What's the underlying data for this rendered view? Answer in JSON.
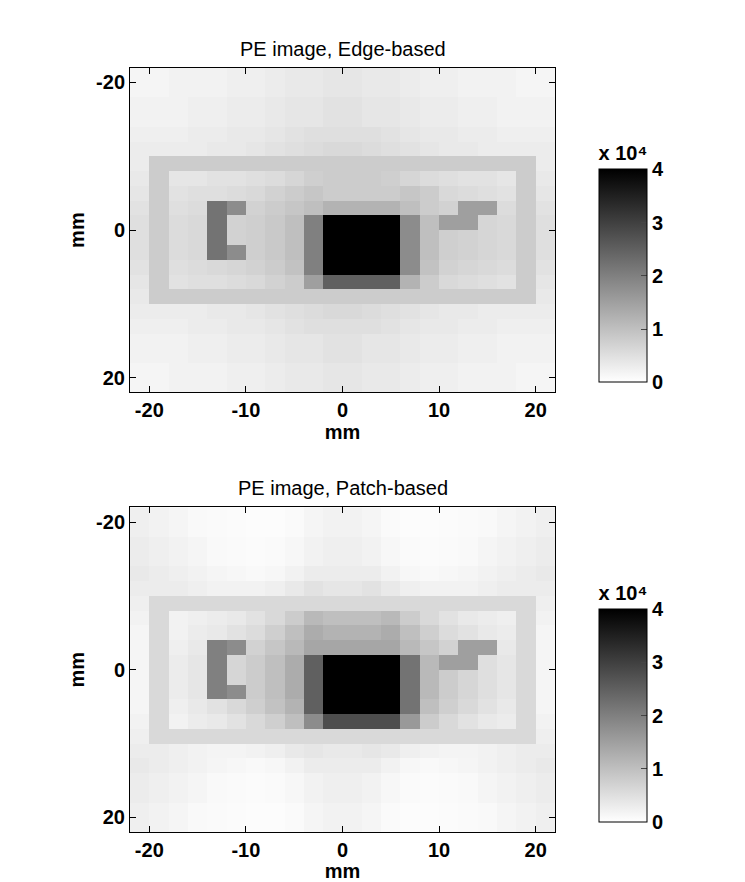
{
  "chart_data": [
    {
      "type": "heatmap",
      "title": "PE image, Edge-based",
      "x_label": "mm",
      "y_label": "mm",
      "x": [
        -21,
        -19,
        -17,
        -15,
        -13,
        -11,
        -9,
        -7,
        -5,
        -3,
        -1,
        1,
        3,
        5,
        7,
        9,
        11,
        13,
        15,
        17,
        19,
        21
      ],
      "y": [
        -21,
        -19,
        -17,
        -15,
        -13,
        -11,
        -9,
        -7,
        -5,
        -3,
        -1,
        1,
        3,
        5,
        7,
        9,
        11,
        13,
        15,
        17,
        19,
        21
      ],
      "z": [
        [
          1500,
          1500,
          2000,
          2000,
          2000,
          2500,
          2500,
          3000,
          3500,
          3500,
          4000,
          4000,
          3500,
          3500,
          3000,
          2500,
          2500,
          2000,
          2000,
          2000,
          1500,
          1500
        ],
        [
          1500,
          1500,
          2000,
          2000,
          2000,
          2500,
          2500,
          3000,
          3500,
          3500,
          4000,
          4000,
          3500,
          3500,
          3000,
          2500,
          2500,
          2000,
          2000,
          2000,
          1500,
          1500
        ],
        [
          2000,
          2000,
          2000,
          2500,
          2500,
          3000,
          3000,
          3500,
          4000,
          4000,
          4500,
          4500,
          4000,
          4000,
          3500,
          3000,
          3000,
          2500,
          2500,
          2000,
          2000,
          2000
        ],
        [
          2000,
          2000,
          2000,
          2500,
          2500,
          3000,
          3000,
          3500,
          4000,
          4000,
          4500,
          4500,
          4000,
          4000,
          3500,
          3000,
          3000,
          2500,
          2500,
          2000,
          2000,
          2000
        ],
        [
          2500,
          2500,
          2500,
          3000,
          3000,
          3500,
          3500,
          4000,
          4500,
          5000,
          5000,
          5000,
          5000,
          4500,
          4000,
          3500,
          3500,
          3000,
          3000,
          2500,
          2500,
          2500
        ],
        [
          3000,
          3000,
          3000,
          3000,
          3500,
          3500,
          4000,
          4500,
          5000,
          5500,
          6000,
          6000,
          5500,
          5000,
          4500,
          4000,
          3500,
          3500,
          3000,
          3000,
          3000,
          3000
        ],
        [
          3000,
          8000,
          8000,
          8000,
          8000,
          8000,
          8000,
          8000,
          8000,
          8000,
          8000,
          8000,
          8000,
          8000,
          8000,
          8000,
          8000,
          8000,
          8000,
          8000,
          8000,
          3000
        ],
        [
          3500,
          8000,
          4000,
          4000,
          4500,
          4500,
          5000,
          5500,
          6500,
          7500,
          8000,
          8000,
          8000,
          7500,
          6500,
          5500,
          5000,
          4500,
          4500,
          4000,
          8000,
          3500
        ],
        [
          4000,
          8000,
          4500,
          5000,
          5000,
          5500,
          6000,
          7000,
          8000,
          9000,
          8000,
          8000,
          8000,
          8000,
          9000,
          8000,
          6000,
          5500,
          5000,
          4500,
          8000,
          4000
        ],
        [
          4500,
          8000,
          5000,
          5500,
          22000,
          18000,
          7000,
          8000,
          9000,
          10000,
          12000,
          12000,
          12000,
          12000,
          10000,
          8000,
          7000,
          15000,
          15000,
          5500,
          8000,
          4500
        ],
        [
          5000,
          8000,
          5500,
          6000,
          22000,
          7000,
          7500,
          8500,
          10000,
          20000,
          40000,
          40000,
          40000,
          40000,
          18000,
          10000,
          15000,
          15000,
          6500,
          6000,
          8000,
          5000
        ],
        [
          5000,
          8000,
          5500,
          6000,
          22000,
          7000,
          7500,
          8500,
          10000,
          20000,
          40000,
          40000,
          40000,
          40000,
          18000,
          10000,
          7500,
          7000,
          6500,
          6000,
          8000,
          5000
        ],
        [
          5000,
          8000,
          5500,
          6000,
          22000,
          18000,
          7500,
          8500,
          10000,
          20000,
          40000,
          40000,
          40000,
          40000,
          18000,
          10000,
          7500,
          7000,
          6500,
          6000,
          8000,
          5000
        ],
        [
          4500,
          8000,
          5000,
          5500,
          6000,
          6500,
          7000,
          8000,
          9500,
          20000,
          40000,
          40000,
          40000,
          40000,
          18000,
          9500,
          7000,
          6500,
          6000,
          5500,
          8000,
          4500
        ],
        [
          4000,
          8000,
          4500,
          5000,
          5000,
          5500,
          6000,
          7000,
          8000,
          15000,
          25000,
          25000,
          25000,
          25000,
          12000,
          8000,
          6000,
          5500,
          5000,
          4500,
          8000,
          4000
        ],
        [
          3500,
          8000,
          8000,
          8000,
          8000,
          8000,
          8000,
          8000,
          8000,
          8000,
          8000,
          8000,
          8000,
          8000,
          8000,
          8000,
          8000,
          8000,
          8000,
          8000,
          8000,
          3500
        ],
        [
          3000,
          3000,
          3000,
          3000,
          3500,
          3500,
          4000,
          4500,
          5000,
          5500,
          6000,
          6000,
          5500,
          5000,
          4500,
          4000,
          3500,
          3500,
          3000,
          3000,
          3000,
          3000
        ],
        [
          2500,
          2500,
          2500,
          3000,
          3000,
          3500,
          3500,
          4000,
          4500,
          5000,
          5000,
          5000,
          5000,
          4500,
          4000,
          3500,
          3500,
          3000,
          3000,
          2500,
          2500,
          2500
        ],
        [
          2000,
          2000,
          2000,
          2500,
          2500,
          3000,
          3000,
          3500,
          4000,
          4000,
          4500,
          4500,
          4000,
          4000,
          3500,
          3000,
          3000,
          2500,
          2500,
          2000,
          2000,
          2000
        ],
        [
          2000,
          2000,
          2000,
          2500,
          2500,
          3000,
          3000,
          3500,
          4000,
          4000,
          4500,
          4500,
          4000,
          4000,
          3500,
          3000,
          3000,
          2500,
          2500,
          2000,
          2000,
          2000
        ],
        [
          1500,
          1500,
          2000,
          2000,
          2000,
          2500,
          2500,
          3000,
          3500,
          3500,
          4000,
          4000,
          3500,
          3500,
          3000,
          2500,
          2500,
          2000,
          2000,
          2000,
          1500,
          1500
        ],
        [
          1500,
          1500,
          2000,
          2000,
          2000,
          2500,
          2500,
          3000,
          3500,
          3500,
          4000,
          4000,
          3500,
          3500,
          3000,
          2500,
          2500,
          2000,
          2000,
          2000,
          1500,
          1500
        ]
      ],
      "xlim": [
        -22,
        22
      ],
      "ylim": [
        22,
        -22
      ],
      "xticks": [
        -20,
        -10,
        0,
        10,
        20
      ],
      "yticks": [
        -20,
        0,
        20
      ],
      "colorbar": {
        "range": [
          0,
          40000
        ],
        "title": "x 10⁴",
        "ticks": [
          0,
          {
            "value": 10000,
            "label": "1"
          },
          {
            "value": 20000,
            "label": "2"
          },
          {
            "value": 30000,
            "label": "3"
          },
          {
            "value": 40000,
            "label": "4"
          }
        ]
      }
    },
    {
      "type": "heatmap",
      "title": "PE image, Patch-based",
      "x_label": "mm",
      "y_label": "mm",
      "x": [
        -21,
        -19,
        -17,
        -15,
        -13,
        -11,
        -9,
        -7,
        -5,
        -3,
        -1,
        1,
        3,
        5,
        7,
        9,
        11,
        13,
        15,
        17,
        19,
        21
      ],
      "y": [
        -21,
        -19,
        -17,
        -15,
        -13,
        -11,
        -9,
        -7,
        -5,
        -3,
        -1,
        1,
        3,
        5,
        7,
        9,
        11,
        13,
        15,
        17,
        19,
        21
      ],
      "z": [
        [
          2500,
          2000,
          1500,
          1000,
          800,
          600,
          500,
          500,
          800,
          1500,
          2000,
          2000,
          1500,
          800,
          500,
          500,
          600,
          800,
          1000,
          1500,
          2000,
          2500
        ],
        [
          2500,
          2000,
          1500,
          1000,
          800,
          600,
          500,
          500,
          800,
          1500,
          2000,
          2000,
          1500,
          800,
          500,
          500,
          600,
          800,
          1000,
          1500,
          2000,
          2500
        ],
        [
          3000,
          2500,
          2000,
          1500,
          1000,
          800,
          700,
          800,
          1200,
          2000,
          2500,
          2500,
          2000,
          1200,
          800,
          700,
          800,
          1000,
          1500,
          2000,
          2500,
          3000
        ],
        [
          3000,
          2500,
          2000,
          1500,
          1000,
          800,
          700,
          800,
          1200,
          2000,
          2500,
          2500,
          2000,
          1200,
          800,
          700,
          800,
          1000,
          1500,
          2000,
          2500,
          3000
        ],
        [
          3500,
          3000,
          2500,
          2000,
          1500,
          1200,
          1000,
          1200,
          2000,
          3000,
          3000,
          3000,
          3000,
          2000,
          1200,
          1000,
          1200,
          1500,
          2000,
          2500,
          3000,
          3500
        ],
        [
          3000,
          3000,
          3000,
          2500,
          2000,
          2000,
          2000,
          2500,
          3500,
          4500,
          4000,
          4000,
          4500,
          3500,
          2500,
          2000,
          2000,
          2000,
          2500,
          3000,
          3000,
          3000
        ],
        [
          2500,
          6000,
          6000,
          6000,
          6000,
          6000,
          6000,
          6000,
          6000,
          6000,
          6000,
          6000,
          6000,
          6000,
          6000,
          6000,
          6000,
          6000,
          6000,
          6000,
          6000,
          2500
        ],
        [
          2000,
          6000,
          2000,
          2500,
          3000,
          3500,
          4500,
          6000,
          8000,
          11000,
          10000,
          10000,
          10000,
          11000,
          8000,
          6000,
          4500,
          3500,
          3000,
          2500,
          6000,
          2000
        ],
        [
          1500,
          6000,
          2000,
          3000,
          3500,
          4500,
          5500,
          7500,
          10000,
          13000,
          12000,
          12000,
          12000,
          13000,
          10000,
          7500,
          5500,
          4500,
          3500,
          3000,
          6000,
          1500
        ],
        [
          1500,
          6000,
          2500,
          3500,
          20000,
          18000,
          7000,
          9000,
          11000,
          14000,
          14000,
          14000,
          14000,
          14000,
          11000,
          9000,
          7000,
          15000,
          15000,
          3500,
          6000,
          1500
        ],
        [
          1500,
          6000,
          3000,
          4000,
          20000,
          6500,
          8000,
          10000,
          13000,
          25000,
          40000,
          40000,
          40000,
          40000,
          22000,
          11000,
          15000,
          15000,
          5000,
          4000,
          6000,
          1500
        ],
        [
          1500,
          6000,
          3000,
          4000,
          20000,
          6500,
          8000,
          10000,
          13000,
          25000,
          40000,
          40000,
          40000,
          40000,
          22000,
          11000,
          8000,
          6500,
          5000,
          4000,
          6000,
          1500
        ],
        [
          1500,
          6000,
          3000,
          4000,
          20000,
          18000,
          8000,
          10000,
          13000,
          25000,
          40000,
          40000,
          40000,
          40000,
          22000,
          11000,
          8000,
          6500,
          5000,
          4000,
          6000,
          1500
        ],
        [
          1500,
          6000,
          2500,
          3500,
          4500,
          6000,
          7500,
          9500,
          12000,
          25000,
          40000,
          40000,
          40000,
          40000,
          22000,
          10000,
          7500,
          6000,
          4500,
          3500,
          6000,
          1500
        ],
        [
          2000,
          6000,
          2000,
          3000,
          3500,
          4500,
          6000,
          7500,
          10000,
          18000,
          28000,
          28000,
          28000,
          28000,
          16000,
          8000,
          6000,
          4500,
          3500,
          3000,
          6000,
          2000
        ],
        [
          2500,
          6000,
          6000,
          6000,
          6000,
          6000,
          6000,
          6000,
          6000,
          6000,
          6000,
          6000,
          6000,
          6000,
          6000,
          6000,
          6000,
          6000,
          6000,
          6000,
          6000,
          2500
        ],
        [
          3000,
          3000,
          2500,
          2000,
          1800,
          1800,
          2000,
          2500,
          3500,
          4000,
          3500,
          3500,
          4000,
          3500,
          2500,
          2000,
          1800,
          1800,
          2000,
          2500,
          3000,
          3000
        ],
        [
          3500,
          3000,
          2500,
          2000,
          1500,
          1200,
          1000,
          1200,
          2000,
          3000,
          3000,
          3000,
          3000,
          2000,
          1200,
          1000,
          1200,
          1500,
          2000,
          2500,
          3000,
          3500
        ],
        [
          3000,
          2500,
          2000,
          1500,
          1000,
          800,
          700,
          800,
          1200,
          2000,
          2500,
          2500,
          2000,
          1200,
          800,
          700,
          800,
          1000,
          1500,
          2000,
          2500,
          3000
        ],
        [
          3000,
          2500,
          2000,
          1500,
          1000,
          800,
          700,
          800,
          1200,
          2000,
          2500,
          2500,
          2000,
          1200,
          800,
          700,
          800,
          1000,
          1500,
          2000,
          2500,
          3000
        ],
        [
          2500,
          2000,
          1500,
          1000,
          800,
          600,
          500,
          500,
          800,
          1500,
          2000,
          2000,
          1500,
          800,
          500,
          500,
          600,
          800,
          1000,
          1500,
          2000,
          2500
        ],
        [
          2500,
          2000,
          1500,
          1000,
          800,
          600,
          500,
          500,
          800,
          1500,
          2000,
          2000,
          1500,
          800,
          500,
          500,
          600,
          800,
          1000,
          1500,
          2000,
          2500
        ]
      ],
      "xlim": [
        -22,
        22
      ],
      "ylim": [
        22,
        -22
      ],
      "xticks": [
        -20,
        -10,
        0,
        10,
        20
      ],
      "yticks": [
        -20,
        0,
        20
      ],
      "colorbar": {
        "range": [
          0,
          40000
        ],
        "title": "x 10⁴",
        "ticks": [
          0,
          {
            "value": 10000,
            "label": "1"
          },
          {
            "value": 20000,
            "label": "2"
          },
          {
            "value": 30000,
            "label": "3"
          },
          {
            "value": 40000,
            "label": "4"
          }
        ]
      }
    }
  ]
}
